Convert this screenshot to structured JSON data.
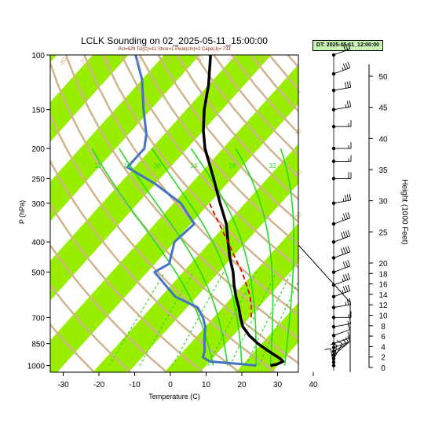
{
  "chart_data": {
    "type": "line",
    "title": "LCLK Sounding on 02_2025-05-11_15:00:00",
    "subtitle": "Pcl=629 Tcl(C)=11 Shox=1 Pwat(cm)=2 Cape(J)= 733",
    "datetime_box": "DT: 2025-05-11_12:00:00",
    "xlabel": "Temperature (C)",
    "ylabel": "P (hPa)",
    "ylabel_right": "Height (1000 Feet)",
    "x_ticks": [
      -30,
      -20,
      -10,
      0,
      10,
      20,
      30,
      40
    ],
    "p_ticks": [
      100,
      150,
      200,
      250,
      300,
      400,
      500,
      700,
      850,
      1000
    ],
    "height_ticks": [
      0,
      2,
      4,
      6,
      8,
      10,
      12,
      14,
      16,
      18,
      20,
      25,
      30,
      35,
      40,
      45,
      50
    ],
    "mixing_ratio_labels": [
      "12",
      "16",
      "20",
      "24",
      "28",
      "32"
    ],
    "isotherm_labels": [
      "-80",
      "-70",
      "-60",
      "-50",
      "-40",
      "-30",
      "-20",
      "-10",
      "0",
      "10",
      "20",
      "30",
      "40"
    ],
    "colors": {
      "temperature": "#000000",
      "dewpoint": "#4472c4",
      "parcel": "#e00000",
      "isotherm_band": "#99ee00",
      "dry_adiabat": "#d2b48c",
      "moist_adiabat": "#22dd22",
      "mixing_ratio": "#22dd22"
    },
    "series": [
      {
        "key": "temperature",
        "points": [
          {
            "p": 1000,
            "t": 28
          },
          {
            "p": 990,
            "t": 29.5
          },
          {
            "p": 970,
            "t": 30.5
          },
          {
            "p": 950,
            "t": 29
          },
          {
            "p": 900,
            "t": 24
          },
          {
            "p": 850,
            "t": 19
          },
          {
            "p": 800,
            "t": 14.5
          },
          {
            "p": 750,
            "t": 10.5
          },
          {
            "p": 700,
            "t": 7.5
          },
          {
            "p": 650,
            "t": 4.5
          },
          {
            "p": 600,
            "t": 1
          },
          {
            "p": 550,
            "t": -2.5
          },
          {
            "p": 500,
            "t": -6
          },
          {
            "p": 450,
            "t": -10.5
          },
          {
            "p": 400,
            "t": -15
          },
          {
            "p": 350,
            "t": -20
          },
          {
            "p": 300,
            "t": -27
          },
          {
            "p": 250,
            "t": -35
          },
          {
            "p": 200,
            "t": -45
          },
          {
            "p": 175,
            "t": -50
          },
          {
            "p": 150,
            "t": -55
          },
          {
            "p": 125,
            "t": -60
          },
          {
            "p": 100,
            "t": -67
          }
        ]
      },
      {
        "key": "dewpoint",
        "points": [
          {
            "p": 1000,
            "t": 24
          },
          {
            "p": 990,
            "t": 20
          },
          {
            "p": 970,
            "t": 10
          },
          {
            "p": 940,
            "t": 7
          },
          {
            "p": 900,
            "t": 6
          },
          {
            "p": 850,
            "t": 4
          },
          {
            "p": 800,
            "t": 2
          },
          {
            "p": 750,
            "t": 0
          },
          {
            "p": 700,
            "t": -3
          },
          {
            "p": 650,
            "t": -7
          },
          {
            "p": 600,
            "t": -16
          },
          {
            "p": 500,
            "t": -28
          },
          {
            "p": 470,
            "t": -26
          },
          {
            "p": 400,
            "t": -30
          },
          {
            "p": 350,
            "t": -29
          },
          {
            "p": 300,
            "t": -38
          },
          {
            "p": 260,
            "t": -50
          },
          {
            "p": 230,
            "t": -62
          },
          {
            "p": 200,
            "t": -62
          },
          {
            "p": 180,
            "t": -65
          },
          {
            "p": 150,
            "t": -72
          },
          {
            "p": 120,
            "t": -80
          },
          {
            "p": 100,
            "t": -88
          }
        ]
      },
      {
        "key": "parcel",
        "points": [
          {
            "p": 700,
            "t": 10.5
          },
          {
            "p": 650,
            "t": 8
          },
          {
            "p": 600,
            "t": 5
          },
          {
            "p": 550,
            "t": 1
          },
          {
            "p": 500,
            "t": -3.5
          },
          {
            "p": 450,
            "t": -9
          },
          {
            "p": 400,
            "t": -15
          },
          {
            "p": 350,
            "t": -22
          },
          {
            "p": 300,
            "t": -30
          }
        ]
      }
    ],
    "wind_barbs_kt": [
      {
        "p": 1000,
        "spd": 10,
        "dir": 170
      },
      {
        "p": 975,
        "spd": 10,
        "dir": 190
      },
      {
        "p": 950,
        "spd": 10,
        "dir": 210
      },
      {
        "p": 925,
        "spd": 10,
        "dir": 230
      },
      {
        "p": 900,
        "spd": 10,
        "dir": 240
      },
      {
        "p": 875,
        "spd": 10,
        "dir": 250
      },
      {
        "p": 850,
        "spd": 10,
        "dir": 250
      },
      {
        "p": 800,
        "spd": 10,
        "dir": 250
      },
      {
        "p": 750,
        "spd": 15,
        "dir": 260
      },
      {
        "p": 700,
        "spd": 15,
        "dir": 270
      },
      {
        "p": 650,
        "spd": 25,
        "dir": 260
      },
      {
        "p": 600,
        "spd": 35,
        "dir": 250
      },
      {
        "p": 550,
        "spd": 35,
        "dir": 250
      },
      {
        "p": 500,
        "spd": 30,
        "dir": 250
      },
      {
        "p": 450,
        "spd": 40,
        "dir": 250
      },
      {
        "p": 400,
        "spd": 40,
        "dir": 250
      },
      {
        "p": 350,
        "spd": 35,
        "dir": 250
      },
      {
        "p": 300,
        "spd": 35,
        "dir": 260
      },
      {
        "p": 250,
        "spd": 20,
        "dir": 270
      },
      {
        "p": 220,
        "spd": 15,
        "dir": 270
      },
      {
        "p": 200,
        "spd": 15,
        "dir": 270
      },
      {
        "p": 170,
        "spd": 15,
        "dir": 270
      },
      {
        "p": 150,
        "spd": 25,
        "dir": 260
      },
      {
        "p": 130,
        "spd": 30,
        "dir": 260
      },
      {
        "p": 115,
        "spd": 35,
        "dir": 250
      },
      {
        "p": 100,
        "spd": 30,
        "dir": 250
      }
    ]
  }
}
